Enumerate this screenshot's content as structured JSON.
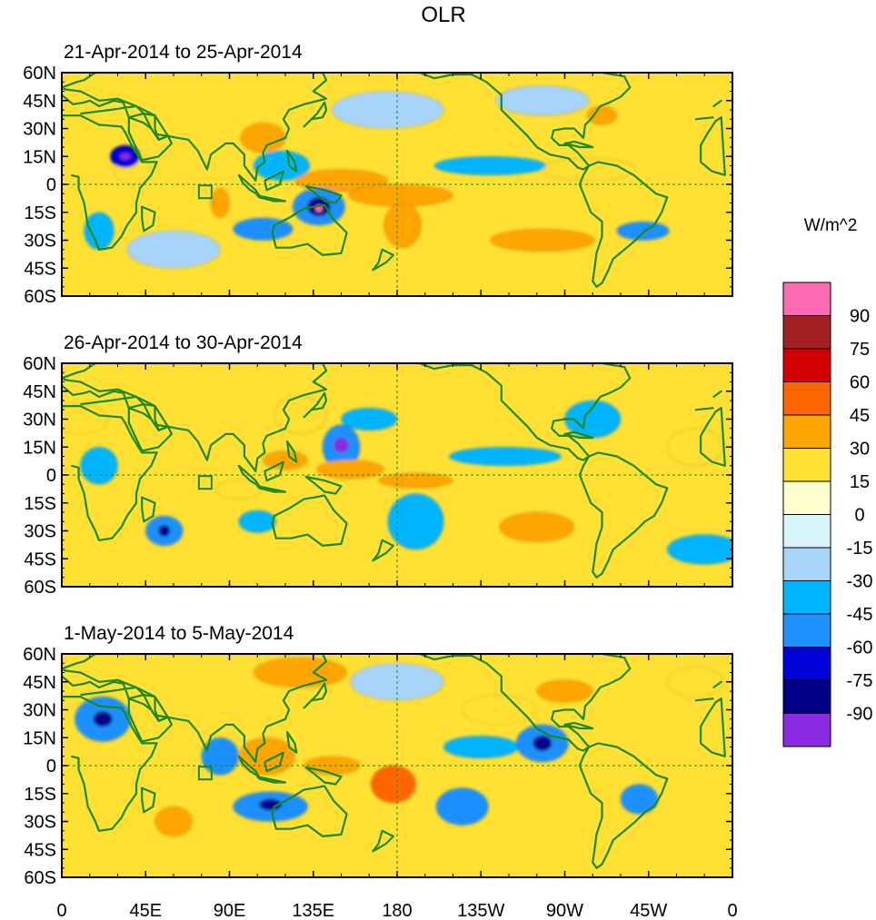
{
  "title": "OLR",
  "colorbar": {
    "unit_label": "W/m^2",
    "levels": [
      "90",
      "75",
      "60",
      "45",
      "30",
      "15",
      "0",
      "-15",
      "-30",
      "-45",
      "-60",
      "-75",
      "-90"
    ],
    "colors": [
      "#ff69b4",
      "#a32020",
      "#d20000",
      "#ff6600",
      "#ffa500",
      "#ffe033",
      "#ffffd0",
      "#d8f4fc",
      "#a8d4fa",
      "#00b4ff",
      "#1e90ff",
      "#0000d8",
      "#00008b",
      "#8a2be2"
    ]
  },
  "panels": [
    {
      "label": "21-Apr-2014 to 25-Apr-2014",
      "anomalies": [
        {
          "lon": 150,
          "lat": 2,
          "rlon": 25,
          "rlat": 6,
          "level": 30
        },
        {
          "lon": 182,
          "lat": -6,
          "rlon": 28,
          "rlat": 6,
          "level": 30
        },
        {
          "lon": 183,
          "lat": -22,
          "rlon": 10,
          "rlat": 12,
          "level": 30
        },
        {
          "lon": 283,
          "lat": 8,
          "rlon": 25,
          "rlat": 6,
          "level": 15
        },
        {
          "lon": 258,
          "lat": -30,
          "rlon": 28,
          "rlat": 6,
          "level": 30
        },
        {
          "lon": 108,
          "lat": 25,
          "rlon": 12,
          "rlat": 8,
          "level": 30
        },
        {
          "lon": 290,
          "lat": 37,
          "rlon": 8,
          "rlat": 5,
          "level": 30
        },
        {
          "lon": 85,
          "lat": -10,
          "rlon": 5,
          "rlat": 8,
          "level": 30
        },
        {
          "lon": 38,
          "lat": 8,
          "rlon": 10,
          "rlat": 8,
          "level": 15
        },
        {
          "lon": 34,
          "lat": 15,
          "rlon": 8,
          "rlat": 6,
          "level": -60
        },
        {
          "lon": 34,
          "lat": 15,
          "rlon": 3,
          "rlat": 2,
          "level": -90
        },
        {
          "lon": 138,
          "lat": -12,
          "rlon": 14,
          "rlat": 10,
          "level": -45
        },
        {
          "lon": 138,
          "lat": -12,
          "rlon": 6,
          "rlat": 5,
          "level": -75
        },
        {
          "lon": 138,
          "lat": -13,
          "rlon": 2,
          "rlat": 2,
          "level": 90
        },
        {
          "lon": 108,
          "lat": -24,
          "rlon": 16,
          "rlat": 6,
          "level": -45
        },
        {
          "lon": 312,
          "lat": -25,
          "rlon": 14,
          "rlat": 5,
          "level": -45
        },
        {
          "lon": 230,
          "lat": 10,
          "rlon": 30,
          "rlat": 5,
          "level": -30
        },
        {
          "lon": 118,
          "lat": 10,
          "rlon": 15,
          "rlat": 8,
          "level": -30
        },
        {
          "lon": 258,
          "lat": 45,
          "rlon": 25,
          "rlat": 8,
          "level": -15
        },
        {
          "lon": 20,
          "lat": -25,
          "rlon": 8,
          "rlat": 10,
          "level": -30
        },
        {
          "lon": 175,
          "lat": 40,
          "rlon": 30,
          "rlat": 10,
          "level": -15
        },
        {
          "lon": 60,
          "lat": -35,
          "rlon": 25,
          "rlat": 10,
          "level": -15
        }
      ]
    },
    {
      "label": "26-Apr-2014 to 30-Apr-2014",
      "anomalies": [
        {
          "lon": 150,
          "lat": 15,
          "rlon": 10,
          "rlat": 12,
          "level": -45
        },
        {
          "lon": 150,
          "lat": 16,
          "rlon": 4,
          "rlat": 4,
          "level": -90
        },
        {
          "lon": 165,
          "lat": 30,
          "rlon": 15,
          "rlat": 6,
          "level": -30
        },
        {
          "lon": 155,
          "lat": 3,
          "rlon": 18,
          "rlat": 5,
          "level": 30
        },
        {
          "lon": 120,
          "lat": 8,
          "rlon": 12,
          "rlat": 5,
          "level": 30
        },
        {
          "lon": 190,
          "lat": -3,
          "rlon": 20,
          "rlat": 4,
          "level": 30
        },
        {
          "lon": 190,
          "lat": -25,
          "rlon": 15,
          "rlat": 15,
          "level": -30
        },
        {
          "lon": 55,
          "lat": -30,
          "rlon": 10,
          "rlat": 8,
          "level": -45
        },
        {
          "lon": 55,
          "lat": -30,
          "rlon": 3,
          "rlat": 3,
          "level": -75
        },
        {
          "lon": 255,
          "lat": -28,
          "rlon": 20,
          "rlat": 8,
          "level": 30
        },
        {
          "lon": 238,
          "lat": 10,
          "rlon": 30,
          "rlat": 5,
          "level": -30
        },
        {
          "lon": 285,
          "lat": 30,
          "rlon": 15,
          "rlat": 10,
          "level": -30
        },
        {
          "lon": 20,
          "lat": 5,
          "rlon": 10,
          "rlat": 10,
          "level": -30
        },
        {
          "lon": 10,
          "lat": 30,
          "rlon": 15,
          "rlat": 8,
          "level": 15
        },
        {
          "lon": 128,
          "lat": 32,
          "rlon": 14,
          "rlat": 10,
          "level": 15
        },
        {
          "lon": 345,
          "lat": -40,
          "rlon": 20,
          "rlat": 8,
          "level": -30
        },
        {
          "lon": 340,
          "lat": 15,
          "rlon": 15,
          "rlat": 10,
          "level": 15
        },
        {
          "lon": 95,
          "lat": -8,
          "rlon": 12,
          "rlat": 5,
          "level": 15
        },
        {
          "lon": 105,
          "lat": -25,
          "rlon": 10,
          "rlat": 6,
          "level": -30
        }
      ]
    },
    {
      "label": "1-May-2014 to 5-May-2014",
      "anomalies": [
        {
          "lon": 258,
          "lat": 12,
          "rlon": 14,
          "rlat": 10,
          "level": -45
        },
        {
          "lon": 258,
          "lat": 12,
          "rlon": 5,
          "rlat": 4,
          "level": -75
        },
        {
          "lon": 112,
          "lat": -22,
          "rlon": 20,
          "rlat": 8,
          "level": -45
        },
        {
          "lon": 112,
          "lat": -21,
          "rlon": 6,
          "rlat": 3,
          "level": -75
        },
        {
          "lon": 22,
          "lat": 25,
          "rlon": 15,
          "rlat": 12,
          "level": -45
        },
        {
          "lon": 22,
          "lat": 25,
          "rlon": 5,
          "rlat": 4,
          "level": -75
        },
        {
          "lon": 85,
          "lat": 5,
          "rlon": 10,
          "rlat": 10,
          "level": -45
        },
        {
          "lon": 110,
          "lat": 5,
          "rlon": 15,
          "rlat": 10,
          "level": 30
        },
        {
          "lon": 145,
          "lat": 0,
          "rlon": 15,
          "rlat": 5,
          "level": 30
        },
        {
          "lon": 178,
          "lat": -10,
          "rlon": 12,
          "rlat": 10,
          "level": 45
        },
        {
          "lon": 128,
          "lat": 50,
          "rlon": 25,
          "rlat": 8,
          "level": 30
        },
        {
          "lon": 270,
          "lat": 40,
          "rlon": 15,
          "rlat": 6,
          "level": 30
        },
        {
          "lon": 215,
          "lat": -22,
          "rlon": 14,
          "rlat": 10,
          "level": -45
        },
        {
          "lon": 310,
          "lat": -18,
          "rlon": 10,
          "rlat": 8,
          "level": -45
        },
        {
          "lon": 60,
          "lat": -30,
          "rlon": 10,
          "rlat": 8,
          "level": 30
        },
        {
          "lon": 225,
          "lat": 10,
          "rlon": 20,
          "rlat": 6,
          "level": -30
        },
        {
          "lon": 340,
          "lat": 45,
          "rlon": 15,
          "rlat": 8,
          "level": 15
        },
        {
          "lon": 180,
          "lat": 45,
          "rlon": 25,
          "rlat": 10,
          "level": -15
        },
        {
          "lon": 235,
          "lat": 30,
          "rlon": 20,
          "rlat": 8,
          "level": 15
        }
      ]
    }
  ],
  "axes": {
    "lon_ticks": [
      {
        "lon": 0,
        "label": "0"
      },
      {
        "lon": 45,
        "label": "45E"
      },
      {
        "lon": 90,
        "label": "90E"
      },
      {
        "lon": 135,
        "label": "135E"
      },
      {
        "lon": 180,
        "label": "180"
      },
      {
        "lon": 225,
        "label": "135W"
      },
      {
        "lon": 270,
        "label": "90W"
      },
      {
        "lon": 315,
        "label": "45W"
      },
      {
        "lon": 360,
        "label": "0"
      }
    ],
    "lat_ticks": [
      {
        "lat": 60,
        "label": "60N"
      },
      {
        "lat": 45,
        "label": "45N"
      },
      {
        "lat": 30,
        "label": "30N"
      },
      {
        "lat": 15,
        "label": "15N"
      },
      {
        "lat": 0,
        "label": "0"
      },
      {
        "lat": -15,
        "label": "15S"
      },
      {
        "lat": -30,
        "label": "30S"
      },
      {
        "lat": -45,
        "label": "45S"
      },
      {
        "lat": -60,
        "label": "60S"
      }
    ]
  },
  "box_marker": {
    "lon": 77,
    "lat": -4
  },
  "coastline_color": "#1a8a1a"
}
